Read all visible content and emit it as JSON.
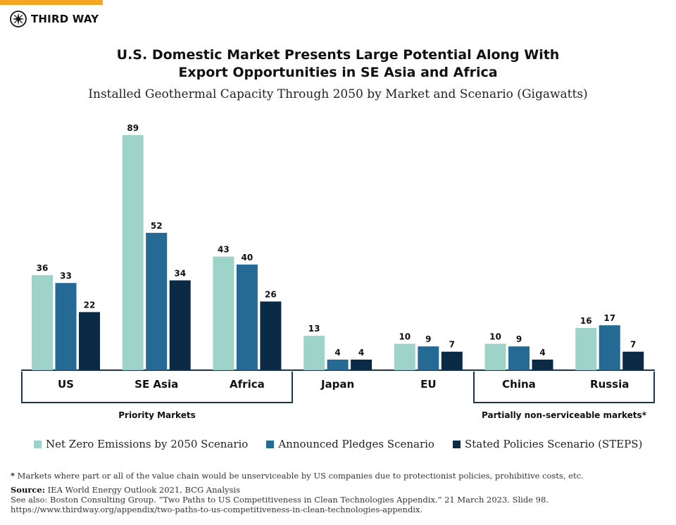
{
  "brand": {
    "name": "THIRD WAY"
  },
  "colors": {
    "accent": "#f5a623",
    "nze": "#9dd3c8",
    "aps": "#246a94",
    "steps": "#0b2a45",
    "axis": "#1b3550"
  },
  "header": {
    "title_line1": "U.S. Domestic Market Presents Large Potential Along With",
    "title_line2": "Export Opportunities in SE Asia and Africa",
    "subtitle": "Installed Geothermal Capacity Through 2050 by Market and Scenario (Gigawatts)"
  },
  "chart_data": {
    "type": "bar",
    "title": "U.S. Domestic Market Presents Large Potential Along With Export Opportunities in SE Asia and Africa",
    "subtitle": "Installed Geothermal Capacity Through 2050 by Market and Scenario (Gigawatts)",
    "categories": [
      "US",
      "SE Asia",
      "Africa",
      "Japan",
      "EU",
      "China",
      "Russia"
    ],
    "series": [
      {
        "name": "Net Zero Emissions by 2050 Scenario",
        "values": [
          36,
          89,
          43,
          13,
          10,
          10,
          16
        ]
      },
      {
        "name": "Announced Pledges Scenario",
        "values": [
          33,
          52,
          40,
          4,
          9,
          9,
          17
        ]
      },
      {
        "name": "Stated Policies Scenario (STEPS)",
        "values": [
          22,
          34,
          26,
          4,
          7,
          4,
          7
        ]
      }
    ],
    "ylim": [
      0,
      90
    ],
    "xlabel": "",
    "ylabel": "",
    "grid": false,
    "legend_position": "bottom-left",
    "groups": [
      {
        "label": "Priority Markets",
        "categories": [
          "US",
          "SE Asia",
          "Africa"
        ]
      },
      {
        "label": "Partially non-serviceable markets*",
        "categories": [
          "China",
          "Russia"
        ]
      }
    ]
  },
  "legend": {
    "items": [
      {
        "label": "Net Zero Emissions by 2050 Scenario",
        "color": "#9dd3c8"
      },
      {
        "label": "Announced Pledges Scenario",
        "color": "#246a94"
      },
      {
        "label": "Stated Policies Scenario (STEPS)",
        "color": "#0b2a45"
      }
    ]
  },
  "footnote": {
    "star": "*",
    "text": "Markets where part or all of the value chain would be unserviceable by US companies due to protectionist policies, prohibitive costs, etc."
  },
  "source": {
    "label": "Source:",
    "text": "IEA World Energy Outlook 2021, BCG Analysis",
    "see_also": "See also: Boston Consulting Group. “Two Paths to US Competitiveness in Clean Technologies Appendix.” 21 March 2023. Slide 98.",
    "url": "https://www.thirdway.org/appendix/two-paths-to-us-competitiveness-in-clean-technologies-appendix."
  }
}
